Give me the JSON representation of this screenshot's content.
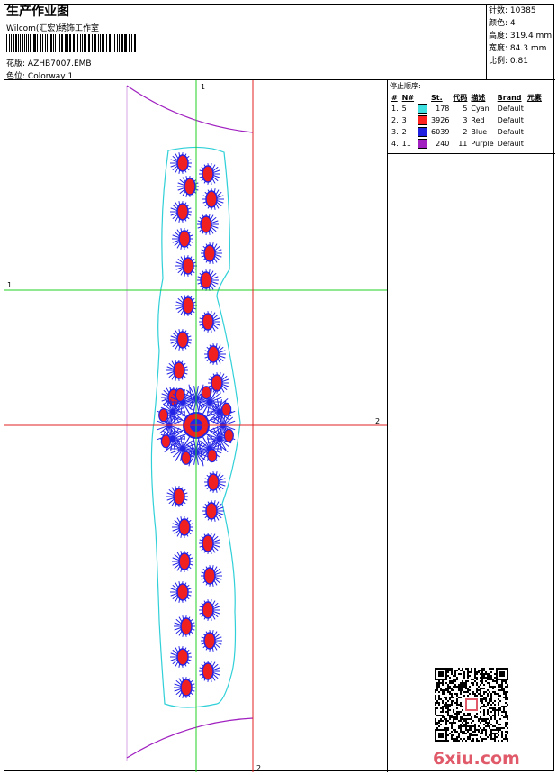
{
  "header": {
    "title": "生产作业图",
    "company": "Wilcom(汇宏)绣饰工作室",
    "design_label": "花版:",
    "design_value": "AZHB7007.EMB",
    "colorway_label": "色位:",
    "colorway_value": "Colorway 1"
  },
  "stats": {
    "stitches_label": "针数:",
    "stitches_value": "10385",
    "colors_label": "颜色:",
    "colors_value": "4",
    "height_label": "高度:",
    "height_value": "319.4 mm",
    "width_label": "宽度:",
    "width_value": "84.3 mm",
    "scale_label": "比例:",
    "scale_value": "0.81"
  },
  "stop_sequence": {
    "title": "停止顺序:",
    "headers": [
      "#",
      "N#",
      "St.",
      "代码",
      "描述",
      "Brand",
      "元素"
    ],
    "rows": [
      {
        "idx": "1.",
        "n": "5",
        "color": "#40e0e0",
        "st": "178",
        "code": "5",
        "desc": "Cyan",
        "brand": "Default"
      },
      {
        "idx": "2.",
        "n": "3",
        "color": "#ff2020",
        "st": "3926",
        "code": "3",
        "desc": "Red",
        "brand": "Default"
      },
      {
        "idx": "3.",
        "n": "2",
        "color": "#2020e0",
        "st": "6039",
        "code": "2",
        "desc": "Blue",
        "brand": "Default"
      },
      {
        "idx": "4.",
        "n": "11",
        "color": "#a020c0",
        "st": "240",
        "code": "11",
        "desc": "Purple",
        "brand": "Default"
      }
    ]
  },
  "guides": {
    "v1_label": "1",
    "h1_label": "1",
    "h2_label": "2",
    "v2_label": "2"
  },
  "logo_text": "6xiu.com"
}
